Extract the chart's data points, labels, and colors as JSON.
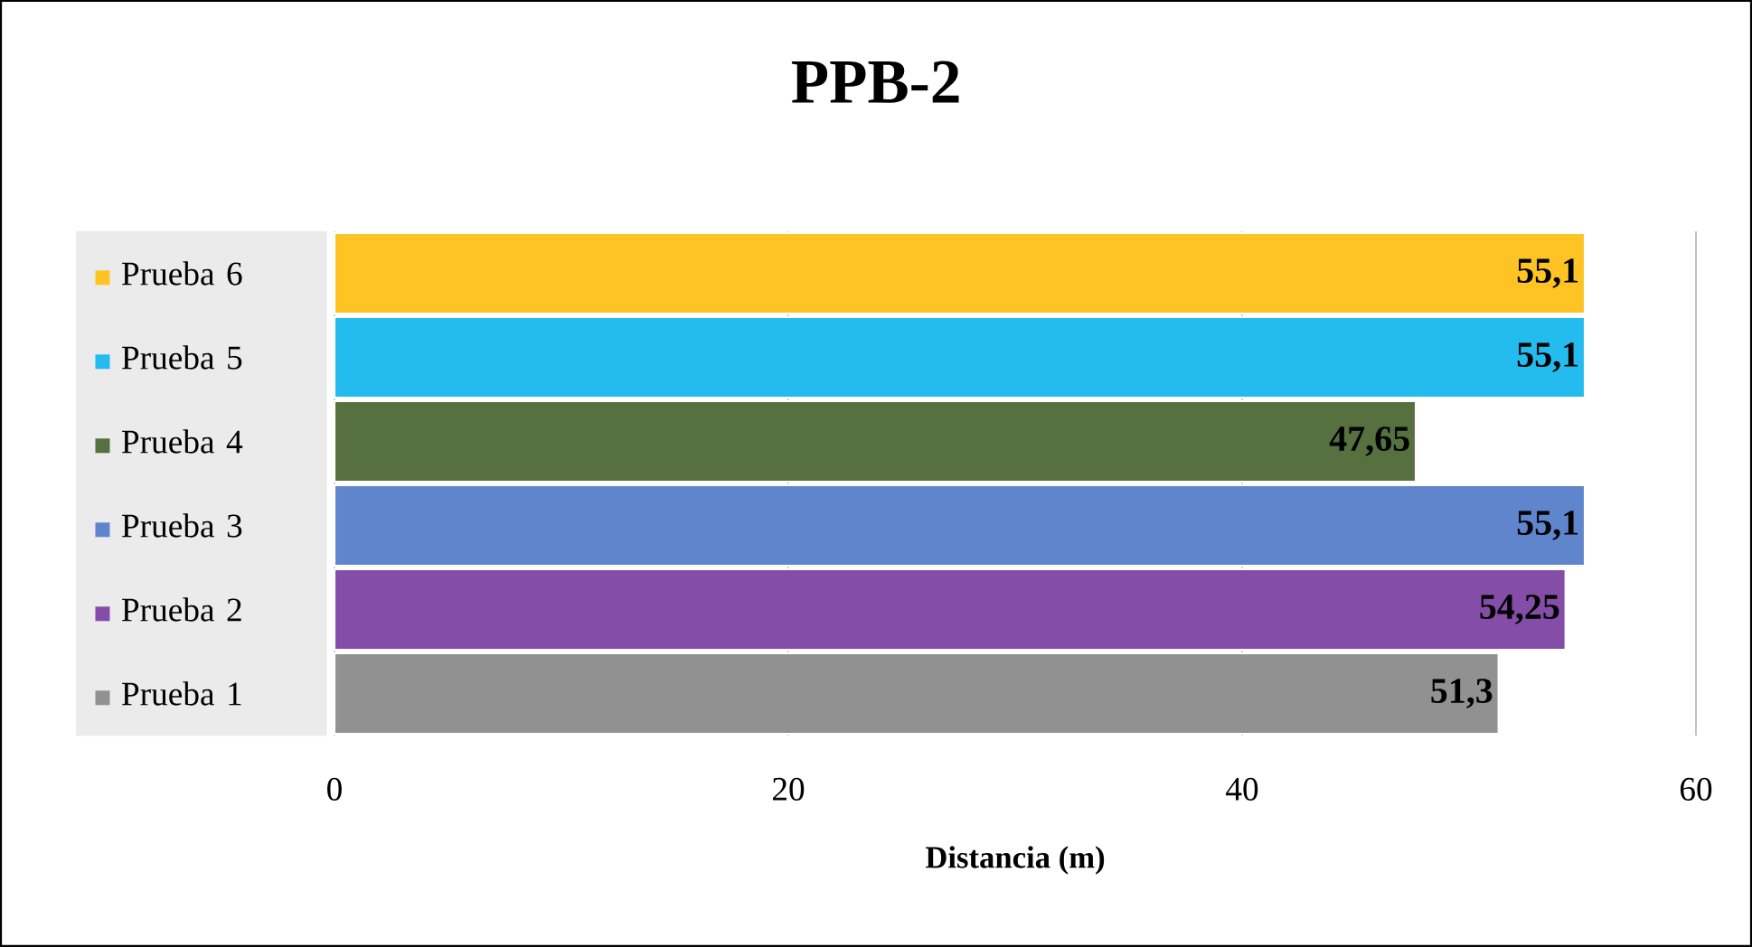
{
  "chart_data": {
    "type": "bar",
    "orientation": "horizontal",
    "title": "PPB-2",
    "xlabel": "Distancia (m)",
    "categories": [
      "Prueba 6",
      "Prueba 5",
      "Prueba 4",
      "Prueba 3",
      "Prueba 2",
      "Prueba 1"
    ],
    "values": [
      55.1,
      55.1,
      47.65,
      55.1,
      54.25,
      51.3
    ],
    "colors": [
      "#ffc423",
      "#24bbef",
      "#56703f",
      "#5f86cd",
      "#844ea8",
      "#919191"
    ],
    "value_labels": [
      "55,1",
      "55,1",
      "47,65",
      "55,1",
      "54,25",
      "51,3"
    ],
    "xlim": [
      0,
      60
    ],
    "xticks": [
      0,
      20,
      40,
      60
    ],
    "grid": "x"
  }
}
